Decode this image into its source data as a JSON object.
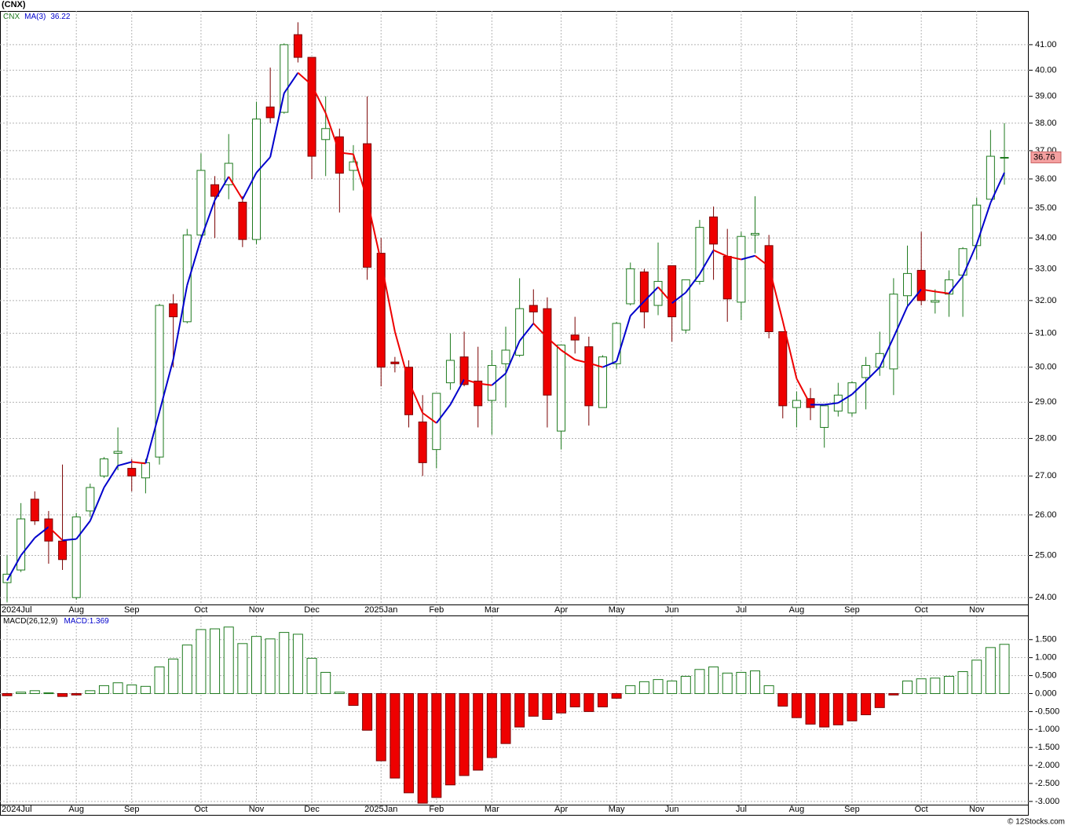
{
  "title": "(CNX)",
  "footer": "© 12Stocks.com",
  "chart_data": [
    {
      "type": "candlestick",
      "categories": [
        "2024Jul",
        null,
        null,
        null,
        null,
        "Aug",
        null,
        null,
        null,
        "Sep",
        null,
        null,
        null,
        null,
        "Oct",
        null,
        null,
        null,
        "Nov",
        null,
        null,
        null,
        "Dec",
        null,
        null,
        null,
        null,
        "2025Jan",
        null,
        null,
        null,
        "Feb",
        null,
        null,
        null,
        "Mar",
        null,
        null,
        null,
        null,
        "Apr",
        null,
        null,
        null,
        "May",
        null,
        null,
        null,
        "Jun",
        null,
        null,
        null,
        null,
        "Jul",
        null,
        null,
        null,
        "Aug",
        null,
        null,
        null,
        "Sep",
        null,
        null,
        null,
        null,
        "Oct",
        null,
        null,
        null,
        "Nov",
        null,
        null
      ],
      "series": [
        {
          "name": "CNX",
          "up_color": "#1e7a1e",
          "down_color": "#ee0000",
          "open": [
            24.35,
            24.65,
            26.4,
            25.9,
            25.35,
            24.0,
            26.1,
            27.0,
            27.6,
            27.2,
            26.95,
            27.5,
            31.9,
            31.35,
            34.1,
            35.8,
            35.8,
            35.2,
            33.95,
            38.6,
            38.4,
            41.4,
            40.5,
            37.4,
            37.5,
            36.3,
            37.25,
            33.5,
            30.15,
            30.0,
            28.45,
            27.7,
            29.55,
            30.3,
            29.6,
            29.05,
            30.1,
            30.35,
            31.85,
            31.75,
            28.2,
            30.95,
            30.6,
            28.85,
            30.1,
            31.9,
            32.9,
            31.85,
            33.1,
            31.1,
            32.6,
            34.7,
            33.4,
            31.95,
            34.1,
            33.75,
            31.05,
            28.85,
            29.1,
            28.3,
            28.75,
            28.7,
            29.7,
            30.0,
            29.95,
            32.15,
            32.95,
            31.95,
            32.2,
            32.8,
            33.75,
            35.3,
            36.75
          ],
          "high": [
            25.0,
            26.3,
            26.6,
            26.1,
            27.3,
            26.05,
            26.8,
            27.5,
            28.3,
            27.45,
            27.45,
            31.9,
            32.2,
            34.3,
            36.9,
            36.1,
            37.6,
            35.4,
            38.8,
            40.1,
            41.05,
            41.9,
            40.5,
            39.0,
            37.8,
            37.2,
            39.0,
            34.0,
            30.3,
            30.2,
            29.2,
            29.25,
            31.0,
            31.05,
            30.6,
            30.5,
            31.2,
            32.7,
            32.35,
            32.1,
            30.65,
            31.5,
            30.9,
            30.35,
            31.35,
            33.2,
            33.0,
            33.85,
            33.1,
            32.65,
            34.6,
            35.05,
            34.3,
            34.2,
            35.4,
            34.1,
            31.05,
            29.3,
            29.4,
            28.9,
            29.55,
            29.6,
            30.3,
            31.05,
            32.7,
            33.75,
            34.2,
            32.35,
            32.95,
            33.7,
            35.35,
            37.75,
            38.0
          ],
          "low": [
            23.9,
            24.6,
            25.75,
            24.8,
            24.65,
            23.95,
            25.95,
            26.95,
            27.15,
            26.6,
            26.55,
            27.3,
            30.0,
            31.3,
            34.0,
            34.0,
            35.3,
            33.7,
            33.8,
            38.0,
            38.35,
            40.3,
            36.0,
            36.1,
            34.85,
            35.6,
            32.65,
            29.45,
            29.85,
            28.3,
            27.0,
            27.2,
            29.35,
            29.45,
            28.3,
            28.1,
            28.85,
            30.3,
            31.3,
            28.3,
            27.7,
            30.4,
            28.35,
            28.85,
            29.95,
            31.85,
            31.15,
            31.55,
            30.75,
            31.0,
            32.5,
            32.65,
            31.35,
            31.4,
            33.5,
            30.85,
            28.55,
            28.3,
            28.5,
            27.75,
            28.6,
            28.6,
            28.8,
            29.75,
            29.2,
            31.85,
            31.85,
            31.6,
            31.5,
            31.5,
            33.3,
            35.3,
            35.8
          ],
          "close": [
            24.55,
            25.9,
            25.85,
            25.35,
            24.9,
            25.95,
            26.7,
            27.45,
            27.65,
            27.0,
            27.35,
            31.85,
            31.5,
            34.1,
            36.3,
            35.4,
            36.55,
            33.95,
            38.15,
            38.2,
            41.0,
            40.5,
            36.8,
            37.8,
            36.2,
            36.6,
            33.05,
            30.0,
            30.1,
            28.65,
            27.35,
            29.25,
            30.2,
            29.5,
            28.9,
            30.05,
            30.5,
            31.75,
            31.65,
            29.2,
            30.65,
            30.8,
            28.9,
            30.3,
            31.3,
            33.0,
            31.65,
            32.6,
            31.5,
            32.65,
            34.35,
            33.8,
            32.05,
            34.05,
            34.15,
            31.05,
            28.9,
            29.05,
            28.85,
            28.9,
            29.2,
            29.55,
            30.05,
            30.4,
            32.2,
            32.85,
            32.0,
            32.0,
            32.65,
            33.65,
            35.1,
            36.8,
            36.76
          ]
        },
        {
          "name": "MA(3)",
          "color": "#0000cc",
          "down_color": "#ee0000",
          "values": [
            24.4,
            25.0,
            25.43,
            25.7,
            25.37,
            25.4,
            25.85,
            26.7,
            27.27,
            27.37,
            27.33,
            28.73,
            30.23,
            32.48,
            33.97,
            35.27,
            36.08,
            35.3,
            36.22,
            36.77,
            39.12,
            39.9,
            39.43,
            38.37,
            36.93,
            36.87,
            35.28,
            33.22,
            31.05,
            29.58,
            28.7,
            28.42,
            28.93,
            29.65,
            29.53,
            29.48,
            29.82,
            30.77,
            31.3,
            30.87,
            30.5,
            30.22,
            30.12,
            30.0,
            30.17,
            31.53,
            31.98,
            32.42,
            31.92,
            32.25,
            32.83,
            33.6,
            33.4,
            33.3,
            33.42,
            33.08,
            31.37,
            29.67,
            28.93,
            28.93,
            28.98,
            29.22,
            29.6,
            30.0,
            30.88,
            31.82,
            32.35,
            32.28,
            32.22,
            32.77,
            33.8,
            35.18,
            36.22
          ]
        }
      ],
      "log_scale": true,
      "grid": true,
      "ylim": [
        23.84,
        42.36
      ],
      "yticks": [
        {
          "value": 24,
          "label": "24.00"
        },
        {
          "value": 25,
          "label": "25.00"
        },
        {
          "value": 26,
          "label": "26.00"
        },
        {
          "value": 27,
          "label": "27.00"
        },
        {
          "value": 28,
          "label": "28.00"
        },
        {
          "value": 29,
          "label": "29.00"
        },
        {
          "value": 30,
          "label": "30.00"
        },
        {
          "value": 31,
          "label": "31.00"
        },
        {
          "value": 32,
          "label": "32.00"
        },
        {
          "value": 33,
          "label": "33.00"
        },
        {
          "value": 34,
          "label": "34.00"
        },
        {
          "value": 35,
          "label": "35.00"
        },
        {
          "value": 36,
          "label": "36.00"
        },
        {
          "value": 37,
          "label": "37.00"
        },
        {
          "value": 38,
          "label": "38.00"
        },
        {
          "value": 39,
          "label": "39.00"
        },
        {
          "value": 40,
          "label": "40.00"
        },
        {
          "value": 41,
          "label": "41.00"
        }
      ]
    },
    {
      "type": "bar",
      "categories": [
        "2024Jul",
        null,
        null,
        null,
        null,
        "Aug",
        null,
        null,
        null,
        "Sep",
        null,
        null,
        null,
        null,
        "Oct",
        null,
        null,
        null,
        "Nov",
        null,
        null,
        null,
        "Dec",
        null,
        null,
        null,
        null,
        "2025Jan",
        null,
        null,
        null,
        "Feb",
        null,
        null,
        null,
        "Mar",
        null,
        null,
        null,
        null,
        "Apr",
        null,
        null,
        null,
        "May",
        null,
        null,
        null,
        "Jun",
        null,
        null,
        null,
        null,
        "Jul",
        null,
        null,
        null,
        "Aug",
        null,
        null,
        null,
        "Sep",
        null,
        null,
        null,
        null,
        "Oct",
        null,
        null,
        null,
        "Nov",
        null,
        null
      ],
      "series": [
        {
          "name": "MACD(26,12,9)",
          "readout_label": "MACD:",
          "color": "#1e7a1e",
          "negative_color": "#ee0000",
          "values": [
            -0.06,
            0.04,
            0.08,
            0.02,
            -0.08,
            -0.04,
            0.08,
            0.22,
            0.3,
            0.24,
            0.2,
            0.74,
            0.96,
            1.35,
            1.78,
            1.8,
            1.85,
            1.39,
            1.59,
            1.52,
            1.7,
            1.65,
            0.98,
            0.59,
            0.04,
            -0.33,
            -1.02,
            -1.87,
            -2.35,
            -2.76,
            -3.05,
            -2.89,
            -2.54,
            -2.28,
            -2.13,
            -1.78,
            -1.39,
            -0.93,
            -0.63,
            -0.72,
            -0.54,
            -0.37,
            -0.5,
            -0.37,
            -0.13,
            0.22,
            0.33,
            0.39,
            0.35,
            0.48,
            0.67,
            0.74,
            0.57,
            0.59,
            0.63,
            0.22,
            -0.35,
            -0.67,
            -0.85,
            -0.93,
            -0.87,
            -0.76,
            -0.59,
            -0.39,
            -0.04,
            0.35,
            0.41,
            0.43,
            0.48,
            0.61,
            0.93,
            1.28,
            1.369
          ]
        }
      ],
      "grid": true,
      "ylim": [
        -3.09,
        2.15
      ],
      "yticks": [
        {
          "value": 1.5,
          "label": "1.500"
        },
        {
          "value": 1,
          "label": "1.000"
        },
        {
          "value": 0.5,
          "label": "0.500"
        },
        {
          "value": 0,
          "label": "0.000"
        },
        {
          "value": -0.5,
          "label": "-0.500"
        },
        {
          "value": -1,
          "label": "-1.000"
        },
        {
          "value": -1.5,
          "label": "-1.500"
        },
        {
          "value": -2,
          "label": "-2.000"
        },
        {
          "value": -2.5,
          "label": "-2.500"
        },
        {
          "value": -3,
          "label": "-3.000"
        }
      ]
    }
  ]
}
